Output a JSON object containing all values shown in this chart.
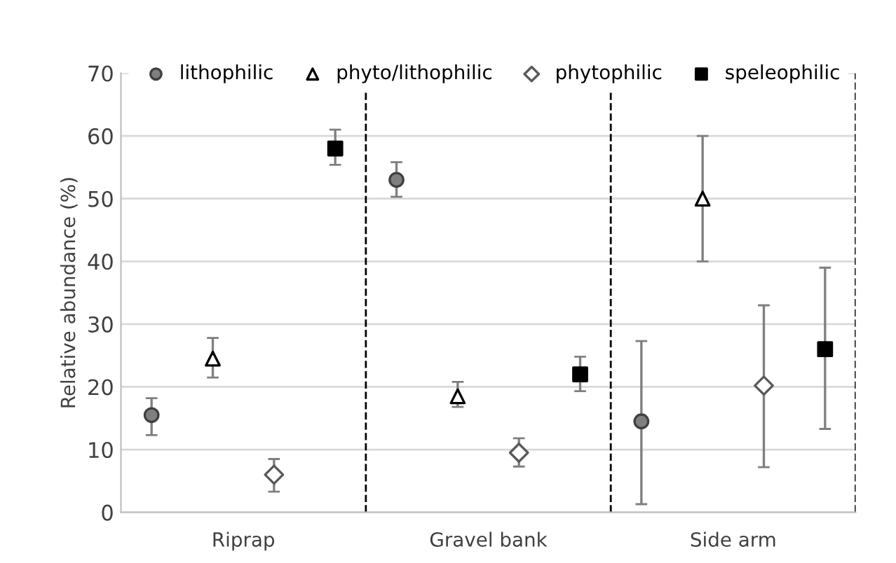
{
  "chart_data": {
    "type": "scatter",
    "ylabel": "Relative abundance (%)",
    "categories": [
      "Riprap",
      "Gravel bank",
      "Side arm"
    ],
    "series": [
      {
        "name": "lithophilic",
        "color": "#7f7f7f",
        "marker": "circle",
        "values": [
          15.5,
          53,
          14.5
        ],
        "errors": [
          [
            12.3,
            18.2
          ],
          [
            50.3,
            55.8
          ],
          [
            1.3,
            27.3
          ]
        ]
      },
      {
        "name": "phyto/lithophilic",
        "color": "#000000",
        "marker": "triangle",
        "values": [
          24.5,
          18.5,
          50
        ],
        "errors": [
          [
            21.5,
            27.8
          ],
          [
            16.8,
            20.8
          ],
          [
            40,
            60
          ]
        ]
      },
      {
        "name": "phytophilic",
        "color": "#595959",
        "marker": "diamond",
        "values": [
          6,
          9.5,
          20.2
        ],
        "errors": [
          [
            3.3,
            8.5
          ],
          [
            7.3,
            11.8
          ],
          [
            7.2,
            33
          ]
        ]
      },
      {
        "name": "speleophilic",
        "color": "#000000",
        "marker": "square",
        "values": [
          58,
          22,
          26
        ],
        "errors": [
          [
            55.4,
            61
          ],
          [
            19.3,
            24.8
          ],
          [
            13.3,
            39
          ]
        ]
      }
    ],
    "ylim": [
      0,
      70
    ],
    "yticks": [
      0,
      10,
      20,
      30,
      40,
      50,
      60,
      70
    ],
    "grid": "y",
    "legend": "top"
  }
}
